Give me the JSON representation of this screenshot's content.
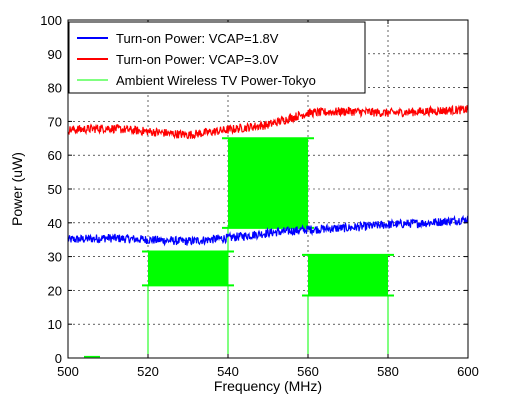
{
  "chart_data": {
    "type": "line",
    "title": "",
    "xlabel": "Frequency (MHz)",
    "ylabel": "Power (uW)",
    "xlim": [
      500,
      600
    ],
    "ylim": [
      0,
      100
    ],
    "x_ticks": [
      500,
      520,
      540,
      560,
      580,
      600
    ],
    "x_tick_labels": [
      "500",
      "520",
      "540",
      "560",
      "580",
      "600"
    ],
    "y_ticks": [
      0,
      10,
      20,
      30,
      40,
      50,
      60,
      70,
      80,
      90,
      100
    ],
    "y_tick_labels": [
      "0",
      "10",
      "20",
      "30",
      "40",
      "50",
      "60",
      "70",
      "80",
      "90",
      "100"
    ],
    "grid": true,
    "legend_position": "top-left",
    "series": [
      {
        "name": "Turn-on Power: VCAP=1.8V",
        "color": "#0000ff",
        "noisy": true,
        "x": [
          500,
          510,
          520,
          530,
          540,
          550,
          560,
          570,
          580,
          590,
          600
        ],
        "y": [
          35.0,
          35.5,
          35.0,
          34.5,
          35.5,
          37.0,
          38.0,
          38.5,
          39.5,
          40.0,
          41.0
        ]
      },
      {
        "name": "Turn-on Power: VCAP=3.0V",
        "color": "#ff0000",
        "noisy": true,
        "x": [
          500,
          510,
          520,
          530,
          540,
          550,
          560,
          570,
          580,
          590,
          600
        ],
        "y": [
          67.5,
          68.0,
          67.0,
          66.0,
          67.5,
          69.0,
          72.5,
          73.0,
          72.5,
          73.0,
          73.5
        ]
      },
      {
        "name": "Ambient Wireless TV Power-Tokyo",
        "color": "#00ff00",
        "type": "band",
        "baseline": 0,
        "bands": [
          {
            "x_start": 520,
            "x_end": 540,
            "low": 21.5,
            "high": 31.5
          },
          {
            "x_start": 540,
            "x_end": 560,
            "low": 38.5,
            "high": 65.0
          },
          {
            "x_start": 560,
            "x_end": 580,
            "low": 18.5,
            "high": 30.5
          }
        ]
      }
    ]
  }
}
